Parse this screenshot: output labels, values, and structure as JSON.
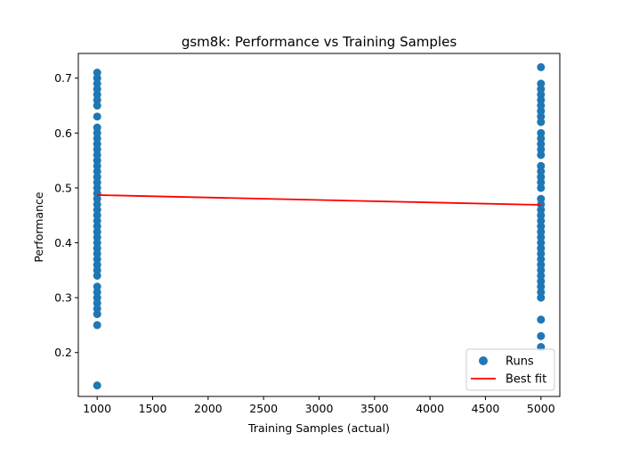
{
  "chart_data": {
    "type": "scatter",
    "title": "gsm8k: Performance vs Training Samples",
    "xlabel": "Training Samples (actual)",
    "ylabel": "Performance",
    "xlim": [
      830,
      5170
    ],
    "ylim": [
      0.12,
      0.745
    ],
    "xticks": [
      1000,
      1500,
      2000,
      2500,
      3000,
      3500,
      4000,
      4500,
      5000
    ],
    "yticks": [
      0.2,
      0.3,
      0.4,
      0.5,
      0.6,
      0.7
    ],
    "grid": false,
    "legend_position": "lower right",
    "series": [
      {
        "name": "Runs",
        "kind": "scatter",
        "color": "#1f77b4",
        "points": [
          [
            1000,
            0.14
          ],
          [
            1000,
            0.25
          ],
          [
            1000,
            0.27
          ],
          [
            1000,
            0.28
          ],
          [
            1000,
            0.29
          ],
          [
            1000,
            0.3
          ],
          [
            1000,
            0.31
          ],
          [
            1000,
            0.32
          ],
          [
            1000,
            0.34
          ],
          [
            1000,
            0.35
          ],
          [
            1000,
            0.36
          ],
          [
            1000,
            0.37
          ],
          [
            1000,
            0.38
          ],
          [
            1000,
            0.39
          ],
          [
            1000,
            0.4
          ],
          [
            1000,
            0.41
          ],
          [
            1000,
            0.42
          ],
          [
            1000,
            0.43
          ],
          [
            1000,
            0.44
          ],
          [
            1000,
            0.45
          ],
          [
            1000,
            0.46
          ],
          [
            1000,
            0.47
          ],
          [
            1000,
            0.48
          ],
          [
            1000,
            0.49
          ],
          [
            1000,
            0.5
          ],
          [
            1000,
            0.51
          ],
          [
            1000,
            0.52
          ],
          [
            1000,
            0.53
          ],
          [
            1000,
            0.54
          ],
          [
            1000,
            0.55
          ],
          [
            1000,
            0.56
          ],
          [
            1000,
            0.57
          ],
          [
            1000,
            0.58
          ],
          [
            1000,
            0.59
          ],
          [
            1000,
            0.6
          ],
          [
            1000,
            0.61
          ],
          [
            1000,
            0.63
          ],
          [
            1000,
            0.65
          ],
          [
            1000,
            0.66
          ],
          [
            1000,
            0.67
          ],
          [
            1000,
            0.68
          ],
          [
            1000,
            0.69
          ],
          [
            1000,
            0.7
          ],
          [
            1000,
            0.71
          ],
          [
            5000,
            0.21
          ],
          [
            5000,
            0.23
          ],
          [
            5000,
            0.26
          ],
          [
            5000,
            0.3
          ],
          [
            5000,
            0.31
          ],
          [
            5000,
            0.32
          ],
          [
            5000,
            0.33
          ],
          [
            5000,
            0.34
          ],
          [
            5000,
            0.35
          ],
          [
            5000,
            0.36
          ],
          [
            5000,
            0.37
          ],
          [
            5000,
            0.38
          ],
          [
            5000,
            0.39
          ],
          [
            5000,
            0.4
          ],
          [
            5000,
            0.41
          ],
          [
            5000,
            0.42
          ],
          [
            5000,
            0.43
          ],
          [
            5000,
            0.44
          ],
          [
            5000,
            0.45
          ],
          [
            5000,
            0.46
          ],
          [
            5000,
            0.47
          ],
          [
            5000,
            0.48
          ],
          [
            5000,
            0.5
          ],
          [
            5000,
            0.51
          ],
          [
            5000,
            0.52
          ],
          [
            5000,
            0.53
          ],
          [
            5000,
            0.54
          ],
          [
            5000,
            0.56
          ],
          [
            5000,
            0.57
          ],
          [
            5000,
            0.58
          ],
          [
            5000,
            0.59
          ],
          [
            5000,
            0.6
          ],
          [
            5000,
            0.62
          ],
          [
            5000,
            0.63
          ],
          [
            5000,
            0.64
          ],
          [
            5000,
            0.65
          ],
          [
            5000,
            0.66
          ],
          [
            5000,
            0.67
          ],
          [
            5000,
            0.68
          ],
          [
            5000,
            0.69
          ],
          [
            5000,
            0.72
          ]
        ]
      },
      {
        "name": "Best fit",
        "kind": "line",
        "color": "#ff0000",
        "points": [
          [
            1000,
            0.487
          ],
          [
            5000,
            0.469
          ]
        ]
      }
    ]
  }
}
